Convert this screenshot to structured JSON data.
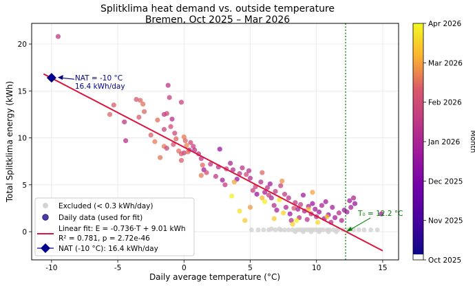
{
  "chart_data": {
    "type": "scatter",
    "title": "Splitklima heat demand vs. outside temperature",
    "subtitle": "Bremen, Oct 2025 – Mar 2026",
    "xlabel": "Daily average temperature (°C)",
    "ylabel": "Total Splitklima energy (kWh)",
    "xlim": [
      -11.5,
      16.2
    ],
    "ylim": [
      -3.0,
      22.2
    ],
    "x_ticks": [
      -10,
      -5,
      0,
      5,
      10,
      15
    ],
    "y_ticks": [
      0,
      5,
      10,
      15,
      20
    ],
    "grid": true,
    "legend_placement": "lower-left",
    "colors": {
      "fit_line": "#dc143c",
      "nat_marker": "#00008b",
      "excluded": "#d3d3d3",
      "t0_line": "#008000"
    },
    "legend": [
      "Excluded (< 0.3 kWh/day)",
      "Daily data (used for fit)",
      "Linear fit: E = -0.736·T + 9.01 kWh",
      "R² = 0.781,  p = 2.72e-46",
      "NAT (-10 °C): 16.4 kWh/day"
    ],
    "colorbar": {
      "label": "Month",
      "ticks": [
        "Oct 2025",
        "Nov 2025",
        "Dec 2025",
        "Jan 2026",
        "Feb 2026",
        "Mar 2026",
        "Apr 2026"
      ],
      "colormap": "plasma"
    },
    "fit": {
      "slope": -0.736,
      "intercept": 9.01,
      "x_range": [
        -10.6,
        15
      ]
    },
    "nat": {
      "x": -10,
      "y": 16.4,
      "label_line1": "NAT = -10 °C",
      "label_line2": "16.4 kWh/day"
    },
    "t0": {
      "x": 12.2,
      "label": "T₀ = 12.2 °C"
    },
    "excluded_points": [
      [
        5.1,
        0.2
      ],
      [
        5.6,
        0.2
      ],
      [
        6.0,
        0.2
      ],
      [
        6.4,
        0.2
      ],
      [
        6.9,
        0.2
      ],
      [
        7.3,
        0.2
      ],
      [
        7.6,
        0.2
      ],
      [
        7.9,
        0.2
      ],
      [
        8.2,
        0.2
      ],
      [
        8.5,
        0.2
      ],
      [
        8.7,
        0.2
      ],
      [
        8.9,
        0.2
      ],
      [
        9.1,
        0.2
      ],
      [
        9.3,
        0.2
      ],
      [
        9.5,
        0.2
      ],
      [
        9.7,
        0.2
      ],
      [
        9.9,
        0.2
      ],
      [
        10.1,
        0.2
      ],
      [
        10.3,
        0.2
      ],
      [
        10.5,
        0.2
      ],
      [
        10.8,
        0.2
      ],
      [
        11.0,
        0.2
      ],
      [
        11.3,
        0.2
      ],
      [
        11.6,
        0.2
      ],
      [
        12.0,
        0.2
      ],
      [
        12.4,
        0.2
      ],
      [
        12.8,
        0.2
      ],
      [
        13.2,
        0.2
      ],
      [
        13.6,
        0.2
      ],
      [
        14.1,
        0.2
      ],
      [
        14.6,
        0.2
      ],
      [
        8.4,
        0.0
      ],
      [
        9.0,
        0.0
      ],
      [
        9.6,
        0.0
      ],
      [
        10.2,
        0.0
      ],
      [
        10.9,
        0.0
      ],
      [
        11.5,
        0.0
      ],
      [
        7.2,
        0.3
      ],
      [
        6.6,
        0.3
      ],
      [
        12.6,
        0.3
      ]
    ],
    "points": [
      {
        "x": -9.5,
        "y": 20.8,
        "m": 3.5
      },
      {
        "x": -5.3,
        "y": 13.5,
        "m": 4.3
      },
      {
        "x": -5.6,
        "y": 12.5,
        "m": 4.4
      },
      {
        "x": -3.6,
        "y": 14.1,
        "m": 4.2
      },
      {
        "x": -3.3,
        "y": 14.0,
        "m": 4.4
      },
      {
        "x": -3.1,
        "y": 13.6,
        "m": 4.5
      },
      {
        "x": -3.4,
        "y": 12.2,
        "m": 4.3
      },
      {
        "x": -3.0,
        "y": 12.8,
        "m": 4.4
      },
      {
        "x": -4.5,
        "y": 11.7,
        "m": 3.4
      },
      {
        "x": -4.4,
        "y": 9.7,
        "m": 3.2
      },
      {
        "x": -2.5,
        "y": 10.3,
        "m": 4.3
      },
      {
        "x": -2.2,
        "y": 9.6,
        "m": 4.6
      },
      {
        "x": -2.0,
        "y": 11.9,
        "m": 4.5
      },
      {
        "x": -1.5,
        "y": 12.5,
        "m": 3.5
      },
      {
        "x": -1.3,
        "y": 12.6,
        "m": 3.8
      },
      {
        "x": -1.2,
        "y": 15.6,
        "m": 3.4
      },
      {
        "x": -1.1,
        "y": 14.3,
        "m": 3.6
      },
      {
        "x": -1.5,
        "y": 10.9,
        "m": 3.8
      },
      {
        "x": -1.0,
        "y": 11.2,
        "m": 4.0
      },
      {
        "x": -0.9,
        "y": 12.0,
        "m": 3.3
      },
      {
        "x": -0.7,
        "y": 10.5,
        "m": 3.9
      },
      {
        "x": -0.2,
        "y": 13.8,
        "m": 3.7
      },
      {
        "x": -1.8,
        "y": 7.9,
        "m": 4.5
      },
      {
        "x": -1.5,
        "y": 9.1,
        "m": 4.6
      },
      {
        "x": -1.3,
        "y": 8.9,
        "m": 3.8
      },
      {
        "x": -0.8,
        "y": 9.3,
        "m": 4.2
      },
      {
        "x": -0.6,
        "y": 9.9,
        "m": 4.4
      },
      {
        "x": -0.4,
        "y": 8.6,
        "m": 4.5
      },
      {
        "x": -0.2,
        "y": 7.6,
        "m": 4.3
      },
      {
        "x": 0.0,
        "y": 10.1,
        "m": 4.6
      },
      {
        "x": 0.1,
        "y": 9.7,
        "m": 4.4
      },
      {
        "x": 0.2,
        "y": 9.2,
        "m": 4.7
      },
      {
        "x": 0.4,
        "y": 8.7,
        "m": 3.2
      },
      {
        "x": 0.0,
        "y": 8.4,
        "m": 3.7
      },
      {
        "x": -0.2,
        "y": 8.3,
        "m": 4.2
      },
      {
        "x": 0.3,
        "y": 8.5,
        "m": 4.5
      },
      {
        "x": 0.5,
        "y": 9.5,
        "m": 3.9
      },
      {
        "x": 0.7,
        "y": 9.1,
        "m": 3.7
      },
      {
        "x": 0.8,
        "y": 8.7,
        "m": 3.2
      },
      {
        "x": 1.1,
        "y": 8.3,
        "m": 3.5
      },
      {
        "x": 1.3,
        "y": 7.8,
        "m": 3.4
      },
      {
        "x": 1.4,
        "y": 7.1,
        "m": 4.4
      },
      {
        "x": 1.5,
        "y": 6.6,
        "m": 2.8
      },
      {
        "x": 1.3,
        "y": 6.0,
        "m": 4.6
      },
      {
        "x": 1.7,
        "y": 6.3,
        "m": 4.0
      },
      {
        "x": 2.0,
        "y": 7.2,
        "m": 3.4
      },
      {
        "x": 2.4,
        "y": 5.9,
        "m": 3.5
      },
      {
        "x": 2.6,
        "y": 6.9,
        "m": 3.2
      },
      {
        "x": 2.7,
        "y": 8.8,
        "m": 2.5
      },
      {
        "x": 2.9,
        "y": 5.5,
        "m": 2.8
      },
      {
        "x": 3.1,
        "y": 5.0,
        "m": 3.6
      },
      {
        "x": 3.2,
        "y": 6.7,
        "m": 3.7
      },
      {
        "x": 3.5,
        "y": 7.3,
        "m": 3.0
      },
      {
        "x": 3.7,
        "y": 6.6,
        "m": 3.2
      },
      {
        "x": 4.0,
        "y": 5.6,
        "m": 2.5
      },
      {
        "x": 4.2,
        "y": 6.2,
        "m": 3.5
      },
      {
        "x": 4.4,
        "y": 6.8,
        "m": 3.4
      },
      {
        "x": 4.7,
        "y": 6.1,
        "m": 3.9
      },
      {
        "x": 4.9,
        "y": 6.5,
        "m": 3.3
      },
      {
        "x": 5.0,
        "y": 5.7,
        "m": 3.2
      },
      {
        "x": 5.2,
        "y": 4.4,
        "m": 3.6
      },
      {
        "x": 5.4,
        "y": 4.8,
        "m": 3.7
      },
      {
        "x": 5.5,
        "y": 4.0,
        "m": 2.5
      },
      {
        "x": 5.8,
        "y": 5.3,
        "m": 3.3
      },
      {
        "x": 5.9,
        "y": 6.3,
        "m": 4.4
      },
      {
        "x": 6.1,
        "y": 4.2,
        "m": 2.8
      },
      {
        "x": 6.3,
        "y": 4.7,
        "m": 3.4
      },
      {
        "x": 6.4,
        "y": 3.9,
        "m": 3.6
      },
      {
        "x": 6.5,
        "y": 5.1,
        "m": 2.7
      },
      {
        "x": 6.6,
        "y": 3.6,
        "m": 3.1
      },
      {
        "x": 6.8,
        "y": 2.8,
        "m": 3.2
      },
      {
        "x": 6.9,
        "y": 4.3,
        "m": 3.5
      },
      {
        "x": 7.0,
        "y": 2.3,
        "m": 2.8
      },
      {
        "x": 7.2,
        "y": 3.4,
        "m": 5.8
      },
      {
        "x": 7.3,
        "y": 4.9,
        "m": 3.7
      },
      {
        "x": 7.4,
        "y": 5.4,
        "m": 4.8
      },
      {
        "x": 7.6,
        "y": 4.0,
        "m": 3.5
      },
      {
        "x": 7.7,
        "y": 2.6,
        "m": 3.0
      },
      {
        "x": 7.9,
        "y": 3.6,
        "m": 3.3
      },
      {
        "x": 8.0,
        "y": 1.9,
        "m": 2.6
      },
      {
        "x": 8.1,
        "y": 1.2,
        "m": 3.2
      },
      {
        "x": 8.3,
        "y": 2.5,
        "m": 4.2
      },
      {
        "x": 8.4,
        "y": 3.1,
        "m": 3.5
      },
      {
        "x": 8.6,
        "y": 2.4,
        "m": 2.8
      },
      {
        "x": 8.7,
        "y": 1.5,
        "m": 3.4
      },
      {
        "x": 8.8,
        "y": 2.9,
        "m": 3.6
      },
      {
        "x": 9.0,
        "y": 3.9,
        "m": 2.7
      },
      {
        "x": 9.1,
        "y": 2.2,
        "m": 3.0
      },
      {
        "x": 9.3,
        "y": 1.3,
        "m": 3.3
      },
      {
        "x": 9.4,
        "y": 2.7,
        "m": 2.9
      },
      {
        "x": 9.6,
        "y": 1.9,
        "m": 3.4
      },
      {
        "x": 9.7,
        "y": 3.0,
        "m": 2.6
      },
      {
        "x": 9.9,
        "y": 2.4,
        "m": 2.8
      },
      {
        "x": 10.0,
        "y": 1.6,
        "m": 3.1
      },
      {
        "x": 10.2,
        "y": 2.1,
        "m": 2.7
      },
      {
        "x": 10.4,
        "y": 2.8,
        "m": 2.9
      },
      {
        "x": 10.6,
        "y": 1.4,
        "m": 2.6
      },
      {
        "x": 10.7,
        "y": 3.2,
        "m": 2.7
      },
      {
        "x": 10.9,
        "y": 1.8,
        "m": 2.5
      },
      {
        "x": 11.1,
        "y": 1.0,
        "m": 3.3
      },
      {
        "x": 11.2,
        "y": 2.6,
        "m": 2.8
      },
      {
        "x": 11.4,
        "y": 1.5,
        "m": 2.7
      },
      {
        "x": 11.7,
        "y": 2.0,
        "m": 3.2
      },
      {
        "x": 11.9,
        "y": 1.2,
        "m": 3.1
      },
      {
        "x": 12.1,
        "y": 2.3,
        "m": 2.6
      },
      {
        "x": 12.3,
        "y": 2.1,
        "m": 2.7
      },
      {
        "x": 12.5,
        "y": 3.3,
        "m": 2.8
      },
      {
        "x": 12.6,
        "y": 2.6,
        "m": 2.9
      },
      {
        "x": 12.8,
        "y": 3.6,
        "m": 3.0
      },
      {
        "x": 12.9,
        "y": 3.0,
        "m": 2.5
      },
      {
        "x": 14.9,
        "y": 1.9,
        "m": 2.6
      },
      {
        "x": 3.6,
        "y": 3.8,
        "m": 5.9
      },
      {
        "x": 4.2,
        "y": 2.2,
        "m": 5.7
      },
      {
        "x": 4.6,
        "y": 1.2,
        "m": 5.4
      },
      {
        "x": 6.1,
        "y": 3.2,
        "m": 5.9
      },
      {
        "x": 6.8,
        "y": 1.4,
        "m": 5.4
      },
      {
        "x": 7.5,
        "y": 2.0,
        "m": 5.5
      },
      {
        "x": 8.5,
        "y": 1.2,
        "m": 5.9
      },
      {
        "x": 9.4,
        "y": 2.4,
        "m": 5.3
      },
      {
        "x": 10.1,
        "y": 1.0,
        "m": 5.6
      },
      {
        "x": 10.8,
        "y": 1.6,
        "m": 5.3
      },
      {
        "x": 5.9,
        "y": 3.6,
        "m": 5.2
      },
      {
        "x": 8.2,
        "y": 0.8,
        "m": 5.5
      },
      {
        "x": 3.8,
        "y": 5.3,
        "m": 5.0
      },
      {
        "x": 9.7,
        "y": 4.2,
        "m": 5.0
      },
      {
        "x": 5.0,
        "y": 2.6,
        "m": 4.9
      }
    ]
  }
}
